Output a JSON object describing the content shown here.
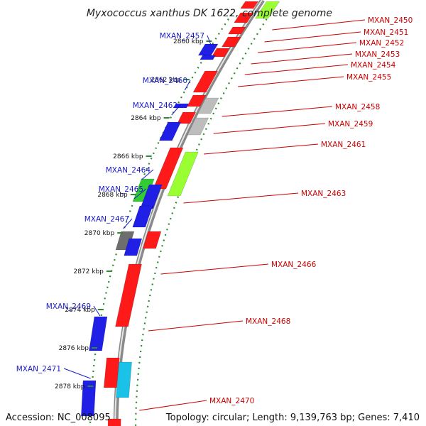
{
  "title": "Myxococcus xanthus DK 1622, complete genome",
  "footer": {
    "accession": "Accession: NC_008095",
    "topology": "Topology: circular; Length: 9,139,763 bp; Genes: 7,410"
  },
  "ticks": [
    {
      "label": "2860 kbp",
      "kbp": 2860
    },
    {
      "label": "2862 kbp",
      "kbp": 2862
    },
    {
      "label": "2864 kbp",
      "kbp": 2864
    },
    {
      "label": "2866 kbp",
      "kbp": 2866
    },
    {
      "label": "2868 kbp",
      "kbp": 2868
    },
    {
      "label": "2870 kbp",
      "kbp": 2870
    },
    {
      "label": "2872 kbp",
      "kbp": 2872
    },
    {
      "label": "2874 kbp",
      "kbp": 2874
    },
    {
      "label": "2876 kbp",
      "kbp": 2876
    },
    {
      "label": "2878 kbp",
      "kbp": 2878
    }
  ],
  "gene_labels": [
    {
      "name": "MXAN_2450",
      "side": "right"
    },
    {
      "name": "MXAN_2451",
      "side": "right"
    },
    {
      "name": "MXAN_2452",
      "side": "right"
    },
    {
      "name": "MXAN_2453",
      "side": "right"
    },
    {
      "name": "MXAN_2454",
      "side": "right"
    },
    {
      "name": "MXAN_2455",
      "side": "right"
    },
    {
      "name": "MXAN_2457",
      "side": "left"
    },
    {
      "name": "MXAN_2458",
      "side": "right"
    },
    {
      "name": "MXAN_2459",
      "side": "right"
    },
    {
      "name": "MXAN_2460",
      "side": "left"
    },
    {
      "name": "MXAN_2461",
      "side": "right"
    },
    {
      "name": "MXAN_2462",
      "side": "left"
    },
    {
      "name": "MXAN_2463",
      "side": "right"
    },
    {
      "name": "MXAN_2464",
      "side": "left"
    },
    {
      "name": "MXAN_2465",
      "side": "left"
    },
    {
      "name": "MXAN_2466",
      "side": "right"
    },
    {
      "name": "MXAN_2467",
      "side": "left"
    },
    {
      "name": "MXAN_2468",
      "side": "right"
    },
    {
      "name": "MXAN_2469",
      "side": "left"
    },
    {
      "name": "MXAN_2470",
      "side": "right"
    },
    {
      "name": "MXAN_2471",
      "side": "left"
    }
  ],
  "colors": {
    "backbone": "#8a8a8a",
    "backbone_highlight": "#e6e6e6",
    "forward_gene": "#ff1a1a",
    "reverse_gene": "#1f1fe6",
    "rna_green": "#33cc33",
    "lime": "#99ff33",
    "grey_gene": "#bdbdbd",
    "dark_grey_gene": "#6e6e6e",
    "cyan_gene": "#19c2e6",
    "tick_dots": "#2e8b2e",
    "left_label": "#1a1acc",
    "right_label": "#cc0000"
  }
}
